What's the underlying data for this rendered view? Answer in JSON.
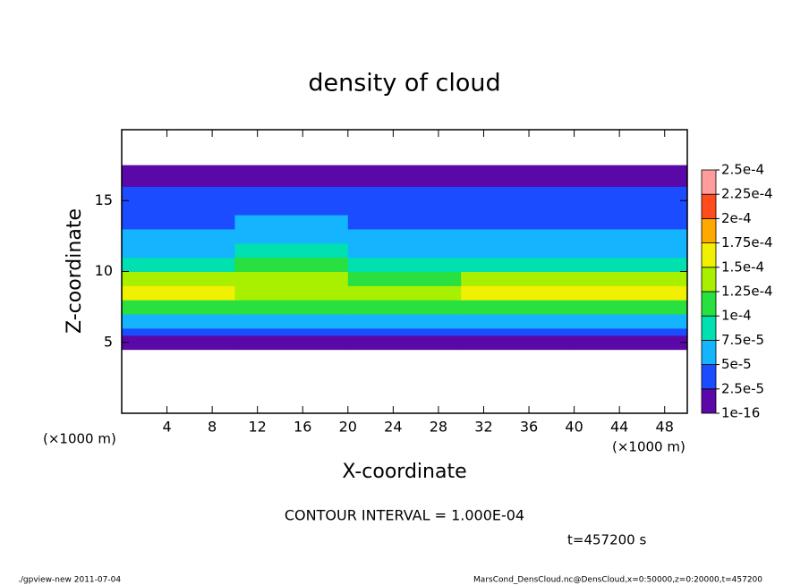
{
  "chart_data": {
    "type": "heatmap",
    "title": "density of cloud",
    "xlabel": "X-coordinate",
    "ylabel": "Z-coordinate",
    "axis_unit": "(×1000 m)",
    "contour_note": "CONTOUR INTERVAL = 1.000E-04",
    "time_note": "t=457200 s",
    "footer_left": "./gpview-new   2011-07-04",
    "footer_right": "MarsCond_DensCloud.nc@DensCloud,x=0:50000,z=0:20000,t=457200",
    "xlim": [
      0,
      50
    ],
    "xticks": [
      4,
      8,
      12,
      16,
      20,
      24,
      28,
      32,
      36,
      40,
      44,
      48
    ],
    "ylim": [
      0,
      20
    ],
    "yticks": [
      5,
      10,
      15
    ],
    "x_edges": [
      0,
      10,
      20,
      30,
      40,
      50
    ],
    "z_edges": [
      4.5,
      5,
      5.5,
      6,
      7,
      8,
      9,
      10,
      11,
      12,
      13,
      14,
      15,
      16,
      16.5,
      17.5
    ],
    "values": [
      [
        1e-06,
        1e-06,
        1e-06,
        1e-06,
        1e-06
      ],
      [
        1.5e-05,
        1.5e-05,
        1.5e-05,
        1.5e-05,
        1.5e-05
      ],
      [
        4e-05,
        4e-05,
        4e-05,
        4e-05,
        4e-05
      ],
      [
        7e-05,
        7e-05,
        7e-05,
        7e-05,
        7e-05
      ],
      [
        0.00011,
        0.00011,
        0.00011,
        0.00012,
        0.00011
      ],
      [
        0.00015,
        0.00014,
        0.00014,
        0.00016,
        0.00015
      ],
      [
        0.00013,
        0.00013,
        0.00012,
        0.00014,
        0.00013
      ],
      [
        9e-05,
        0.000105,
        9e-05,
        9e-05,
        9e-05
      ],
      [
        6e-05,
        8e-05,
        7e-05,
        6e-05,
        6e-05
      ],
      [
        5e-05,
        7e-05,
        5e-05,
        5e-05,
        5e-05
      ],
      [
        4e-05,
        6e-05,
        4e-05,
        4e-05,
        4.5e-05
      ],
      [
        4e-05,
        4e-05,
        4e-05,
        4e-05,
        4e-05
      ],
      [
        3e-05,
        3e-05,
        3e-05,
        3e-05,
        3e-05
      ],
      [
        1e-05,
        1e-05,
        1e-05,
        1e-05,
        1e-05
      ],
      [
        1e-06,
        1e-06,
        1e-06,
        1e-06,
        1e-06
      ]
    ],
    "colorbar_levels": [
      {
        "value": 1e-16,
        "label": "1e-16"
      },
      {
        "value": 2.5e-05,
        "label": "2.5e-5"
      },
      {
        "value": 5e-05,
        "label": "5e-5"
      },
      {
        "value": 7.5e-05,
        "label": "7.5e-5"
      },
      {
        "value": 0.0001,
        "label": "1e-4"
      },
      {
        "value": 0.000125,
        "label": "1.25e-4"
      },
      {
        "value": 0.00015,
        "label": "1.5e-4"
      },
      {
        "value": 0.000175,
        "label": "1.75e-4"
      },
      {
        "value": 0.0002,
        "label": "2e-4"
      },
      {
        "value": 0.000225,
        "label": "2.25e-4"
      },
      {
        "value": 0.00025,
        "label": "2.5e-4"
      }
    ],
    "colorbar_colors": [
      "#5a08a8",
      "#1c4cff",
      "#14b4ff",
      "#00e0b0",
      "#28e040",
      "#a8f000",
      "#f0f000",
      "#ffa800",
      "#ff4c1c",
      "#ff9c9c"
    ]
  }
}
